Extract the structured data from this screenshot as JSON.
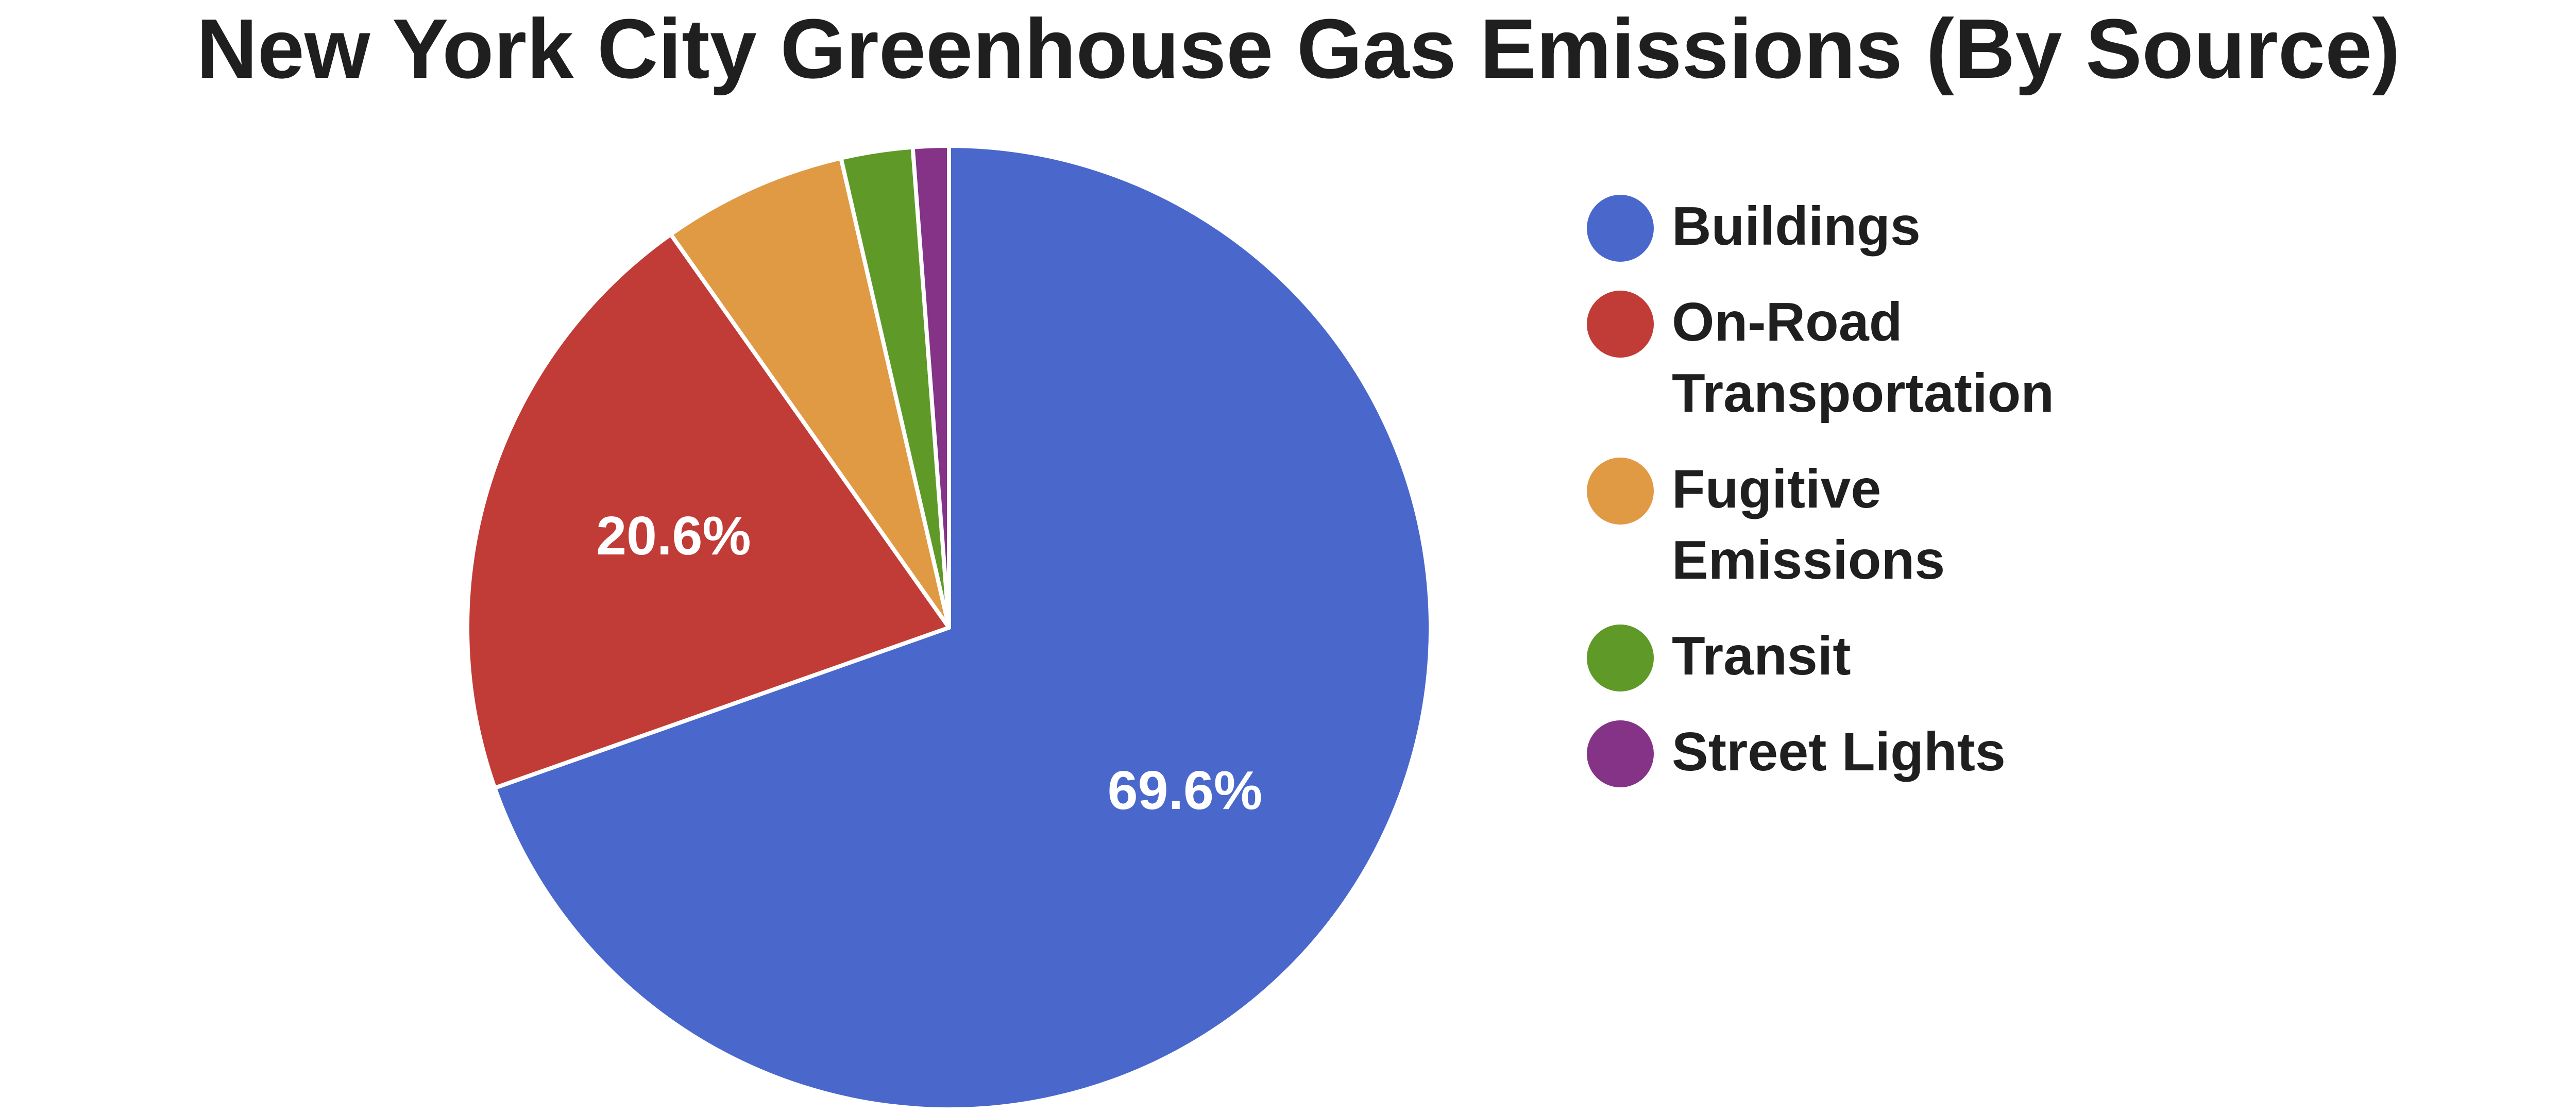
{
  "chart_data": {
    "type": "pie",
    "title": "New York City Greenhouse Gas Emissions (By Source)",
    "categories": [
      "Buildings",
      "On-Road Transportation",
      "Fugitive Emissions",
      "Transit",
      "Street Lights"
    ],
    "legend_labels": [
      "Buildings",
      "On-Road\nTransportation",
      "Fugitive\nEmissions",
      "Transit",
      "Street Lights"
    ],
    "values": [
      69.6,
      20.6,
      6.2,
      2.4,
      1.2
    ],
    "data_labels": [
      "69.6%",
      "20.6%",
      "",
      "",
      ""
    ],
    "colors": [
      "#4a67cc",
      "#c13c37",
      "#e09a43",
      "#5f9a29",
      "#843387"
    ],
    "start_angle": "12 o'clock",
    "direction": "clockwise",
    "legend_position": "right",
    "grid": false
  }
}
